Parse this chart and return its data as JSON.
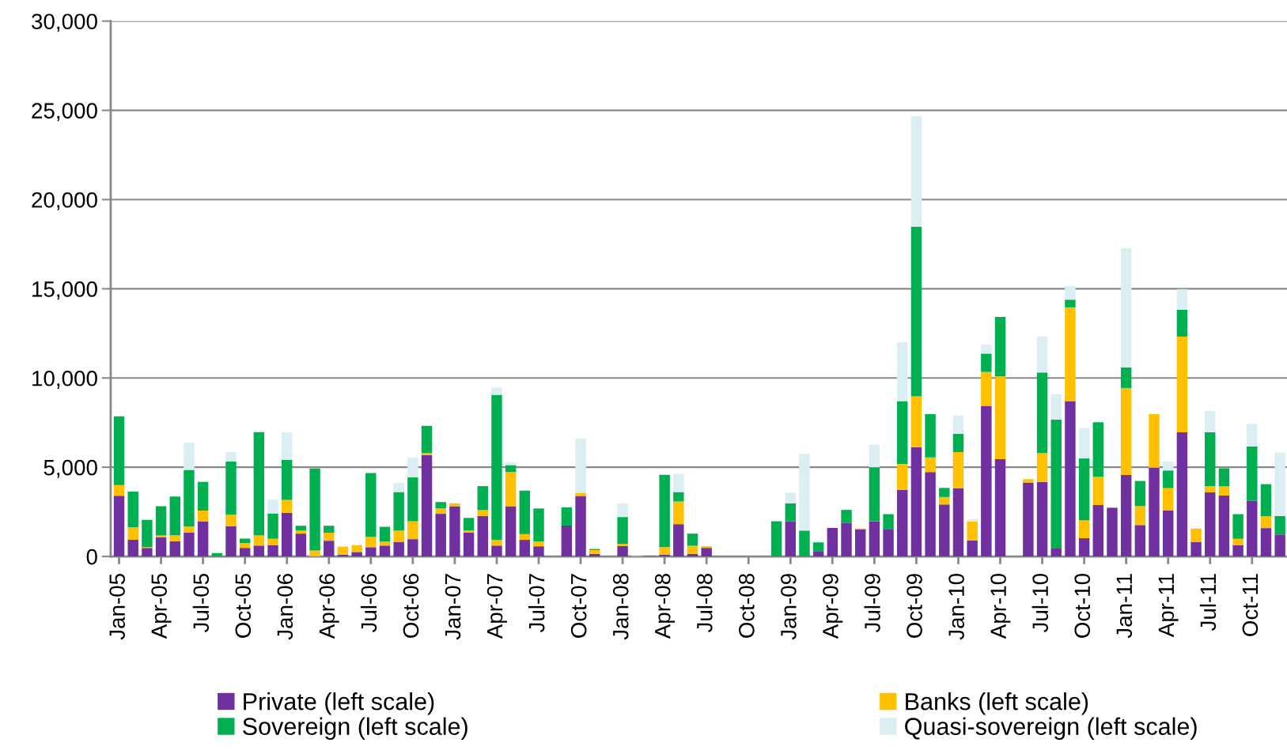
{
  "chart_data": {
    "type": "bar",
    "stacked": true,
    "categories": [
      "Jan-05",
      null,
      null,
      "Apr-05",
      null,
      null,
      "Jul-05",
      null,
      null,
      "Oct-05",
      null,
      null,
      "Jan-06",
      null,
      null,
      "Apr-06",
      null,
      null,
      "Jul-06",
      null,
      null,
      "Oct-06",
      null,
      null,
      "Jan-07",
      null,
      null,
      "Apr-07",
      null,
      null,
      "Jul-07",
      null,
      null,
      "Oct-07",
      null,
      null,
      "Jan-08",
      null,
      null,
      "Apr-08",
      null,
      null,
      "Jul-08",
      null,
      null,
      "Oct-08",
      null,
      null,
      "Jan-09",
      null,
      null,
      "Apr-09",
      null,
      null,
      "Jul-09",
      null,
      null,
      "Oct-09",
      null,
      null,
      "Jan-10",
      null,
      null,
      "Apr-10",
      null,
      null,
      "Jul-10",
      null,
      null,
      "Oct-10",
      null,
      null,
      "Jan-11",
      null,
      null,
      "Apr-11",
      null,
      null,
      "Jul-11",
      null,
      null,
      "Oct-11",
      null,
      null
    ],
    "series": [
      {
        "name": "Private (left scale)",
        "color": "#7030a0",
        "values": [
          3400,
          930,
          480,
          1060,
          850,
          1330,
          1970,
          0,
          1700,
          480,
          610,
          640,
          2450,
          1280,
          0,
          880,
          100,
          250,
          520,
          610,
          820,
          970,
          5670,
          2390,
          2810,
          1330,
          2270,
          610,
          2810,
          930,
          570,
          0,
          1730,
          3390,
          150,
          0,
          580,
          0,
          0,
          100,
          1810,
          150,
          480,
          0,
          0,
          0,
          0,
          0,
          1970,
          0,
          270,
          1600,
          1870,
          1510,
          1970,
          1510,
          3730,
          6120,
          4730,
          2910,
          3810,
          900,
          8440,
          5450,
          0,
          4140,
          4180,
          450,
          8710,
          1020,
          2880,
          2730,
          4560,
          1760,
          4970,
          2570,
          6960,
          800,
          3590,
          3410,
          640,
          3130,
          1590,
          1230
        ]
      },
      {
        "name": "Banks (left scale)",
        "color": "#ffc000",
        "values": [
          600,
          710,
          40,
          120,
          340,
          340,
          600,
          0,
          640,
          270,
          580,
          350,
          720,
          170,
          330,
          450,
          450,
          380,
          580,
          230,
          630,
          1000,
          120,
          310,
          160,
          120,
          330,
          320,
          1920,
          320,
          270,
          0,
          0,
          180,
          210,
          0,
          120,
          40,
          0,
          420,
          1270,
          450,
          90,
          0,
          0,
          0,
          0,
          0,
          0,
          0,
          0,
          0,
          0,
          60,
          0,
          0,
          1450,
          2850,
          820,
          420,
          2040,
          1060,
          1900,
          4640,
          0,
          190,
          1610,
          0,
          5250,
          1010,
          1590,
          0,
          4880,
          1060,
          3010,
          1260,
          5360,
          760,
          340,
          520,
          350,
          0,
          670,
          0
        ]
      },
      {
        "name": "Sovereign (left scale)",
        "color": "#00b050",
        "values": [
          3850,
          1990,
          1530,
          1630,
          2170,
          3180,
          1610,
          190,
          2990,
          250,
          5780,
          1420,
          2250,
          270,
          4600,
          390,
          0,
          0,
          3570,
          820,
          2160,
          2460,
          1530,
          350,
          0,
          710,
          1340,
          8130,
          390,
          2440,
          1850,
          0,
          1020,
          0,
          60,
          0,
          1510,
          0,
          50,
          4060,
          530,
          680,
          0,
          0,
          0,
          0,
          0,
          1970,
          1000,
          1450,
          520,
          0,
          740,
          0,
          3030,
          860,
          3520,
          9510,
          2430,
          510,
          1020,
          0,
          1030,
          3330,
          0,
          0,
          4520,
          7220,
          430,
          3460,
          3050,
          0,
          1160,
          1410,
          0,
          990,
          1500,
          0,
          3030,
          1010,
          1380,
          3030,
          1790,
          1030
        ]
      },
      {
        "name": "Quasi-sovereign (left scale)",
        "color": "#daeef3",
        "values": [
          0,
          0,
          0,
          0,
          0,
          1530,
          0,
          0,
          510,
          0,
          0,
          770,
          1540,
          0,
          0,
          0,
          0,
          0,
          0,
          0,
          510,
          1120,
          0,
          0,
          0,
          0,
          0,
          410,
          150,
          0,
          0,
          0,
          0,
          3030,
          0,
          0,
          760,
          0,
          0,
          0,
          1020,
          0,
          0,
          0,
          0,
          0,
          0,
          0,
          610,
          4300,
          0,
          0,
          0,
          0,
          1260,
          0,
          3300,
          6190,
          0,
          0,
          1030,
          130,
          490,
          0,
          0,
          0,
          2020,
          1430,
          760,
          1710,
          0,
          0,
          6680,
          0,
          0,
          490,
          1160,
          0,
          1200,
          0,
          0,
          1270,
          0,
          3570
        ]
      }
    ],
    "ylim": [
      0,
      30000
    ],
    "yticks": [
      0,
      {
        "value": 5000,
        "label": "5,000"
      },
      {
        "value": 10000,
        "label": "10,000"
      },
      {
        "value": 15000,
        "label": "15,000"
      },
      {
        "value": 20000,
        "label": "20,000"
      },
      {
        "value": 25000,
        "label": "25,000"
      },
      {
        "value": 30000,
        "label": "30,000"
      }
    ],
    "grid": "y",
    "legend": "bottom"
  }
}
